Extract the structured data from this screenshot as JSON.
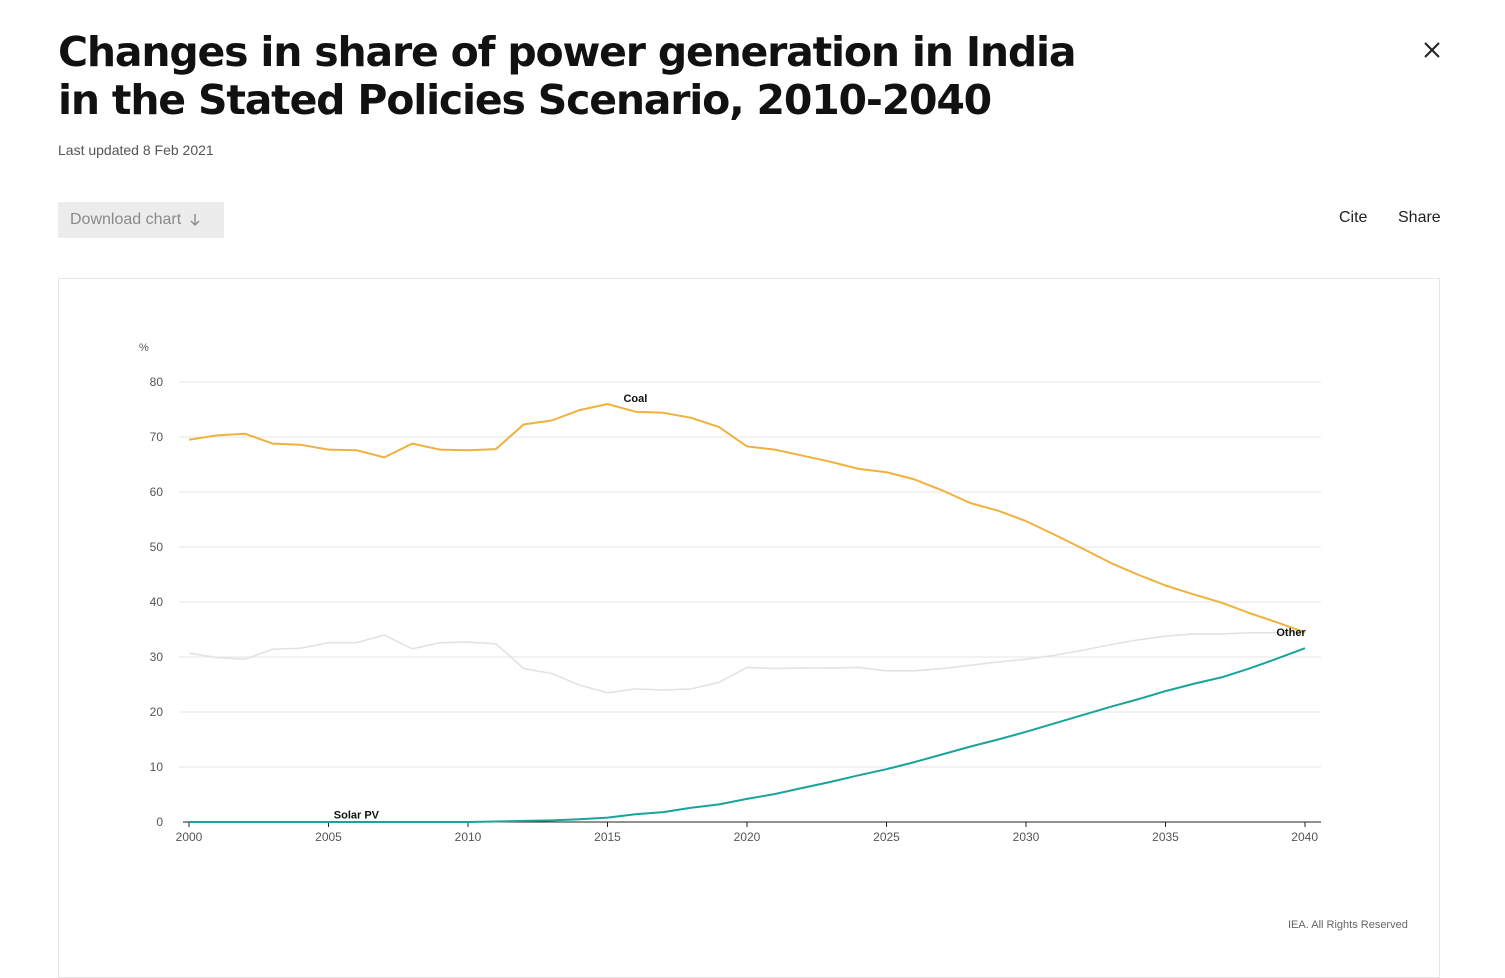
{
  "header": {
    "title": "Changes in share of power generation in India in the Stated Policies Scenario, 2010-2040",
    "updated": "Last updated 8 Feb 2021",
    "close_icon": "close-icon"
  },
  "toolbar": {
    "download_label": "Download chart",
    "download_icon": "arrow-down-icon",
    "cite_label": "Cite",
    "share_label": "Share"
  },
  "credit": "IEA. All Rights Reserved",
  "chart_data": {
    "type": "line",
    "ylabel": "%",
    "xlabel": "",
    "ylim": [
      0,
      80
    ],
    "xlim": [
      2000,
      2040
    ],
    "yticks": [
      0,
      10,
      20,
      30,
      40,
      50,
      60,
      70,
      80
    ],
    "xticks": [
      2000,
      2005,
      2010,
      2015,
      2020,
      2025,
      2030,
      2035,
      2040
    ],
    "grid": true,
    "x": [
      2000,
      2001,
      2002,
      2003,
      2004,
      2005,
      2006,
      2007,
      2008,
      2009,
      2010,
      2011,
      2012,
      2013,
      2014,
      2015,
      2016,
      2017,
      2018,
      2019,
      2020,
      2021,
      2022,
      2023,
      2024,
      2025,
      2026,
      2027,
      2028,
      2029,
      2030,
      2031,
      2032,
      2033,
      2034,
      2035,
      2036,
      2037,
      2038,
      2039,
      2040
    ],
    "series": [
      {
        "name": "Coal",
        "color": "#f0b13d",
        "label_at": 2016,
        "values": [
          69.5,
          70.3,
          70.6,
          68.8,
          68.6,
          67.7,
          67.6,
          66.3,
          68.8,
          67.7,
          67.6,
          67.8,
          72.3,
          73.0,
          74.9,
          76.0,
          74.6,
          74.4,
          73.5,
          71.8,
          68.3,
          67.7,
          66.6,
          65.5,
          64.2,
          63.6,
          62.3,
          60.3,
          58.0,
          56.6,
          54.7,
          52.3,
          49.8,
          47.2,
          45.0,
          43.0,
          41.4,
          39.9,
          38.0,
          36.3,
          34.5
        ]
      },
      {
        "name": "Other",
        "color": "#e3e3e3",
        "label_at": null,
        "values": [
          30.7,
          29.9,
          29.6,
          31.4,
          31.6,
          32.6,
          32.6,
          34.0,
          31.5,
          32.6,
          32.7,
          32.4,
          27.9,
          27.0,
          24.9,
          23.5,
          24.2,
          24.0,
          24.2,
          25.4,
          28.1,
          27.9,
          28.0,
          28.0,
          28.1,
          27.5,
          27.5,
          27.9,
          28.5,
          29.1,
          29.6,
          30.3,
          31.2,
          32.2,
          33.1,
          33.8,
          34.2,
          34.2,
          34.4,
          34.4,
          34.5
        ]
      },
      {
        "name": "Solar PV",
        "color": "#1aa39a",
        "label_at": 2006,
        "values": [
          0,
          0,
          0,
          0,
          0,
          0,
          0,
          0,
          0,
          0,
          0,
          0.1,
          0.2,
          0.3,
          0.5,
          0.8,
          1.4,
          1.8,
          2.6,
          3.2,
          4.2,
          5.1,
          6.2,
          7.3,
          8.5,
          9.6,
          10.9,
          12.3,
          13.7,
          15.0,
          16.4,
          17.9,
          19.4,
          20.9,
          22.3,
          23.8,
          25.1,
          26.3,
          27.9,
          29.7,
          31.6
        ]
      }
    ],
    "annotations": [
      {
        "text": "Coal",
        "x": 2016,
        "y": 76.0
      },
      {
        "text": "Other",
        "x": 2039.5,
        "y": 33.5
      },
      {
        "text": "Solar PV",
        "x": 2006,
        "y": 0.3
      }
    ]
  }
}
